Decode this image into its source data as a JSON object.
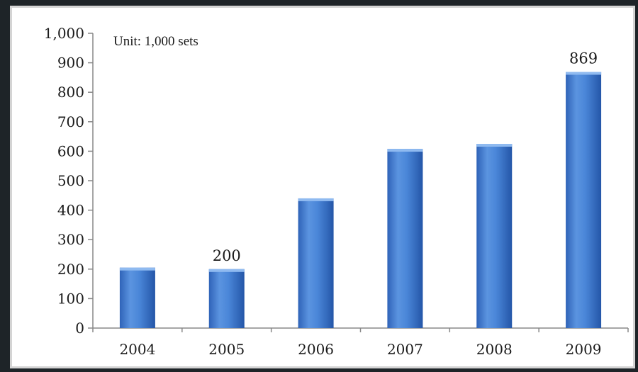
{
  "chart_data": {
    "type": "bar",
    "title": "",
    "xlabel": "",
    "ylabel": "",
    "unit_note": "Unit: 1,000 sets",
    "categories": [
      "2004",
      "2005",
      "2006",
      "2007",
      "2008",
      "2009"
    ],
    "values": [
      205,
      200,
      440,
      608,
      625,
      869
    ],
    "data_labels": [
      "",
      "200",
      "",
      "",
      "",
      "869"
    ],
    "ylim": [
      0,
      1000
    ],
    "yticks": [
      0,
      100,
      200,
      300,
      400,
      500,
      600,
      700,
      800,
      900,
      1000
    ],
    "ytick_labels": [
      "0",
      "100",
      "200",
      "300",
      "400",
      "500",
      "600",
      "700",
      "800",
      "900",
      "1,000"
    ],
    "grid": false,
    "legend": "none",
    "colors": {
      "bar_light": "#6ea2e6",
      "bar_mid": "#3f7fd6",
      "bar_dark": "#2456a8",
      "axis": "#888888",
      "frame_bg": "#1e2428"
    }
  }
}
